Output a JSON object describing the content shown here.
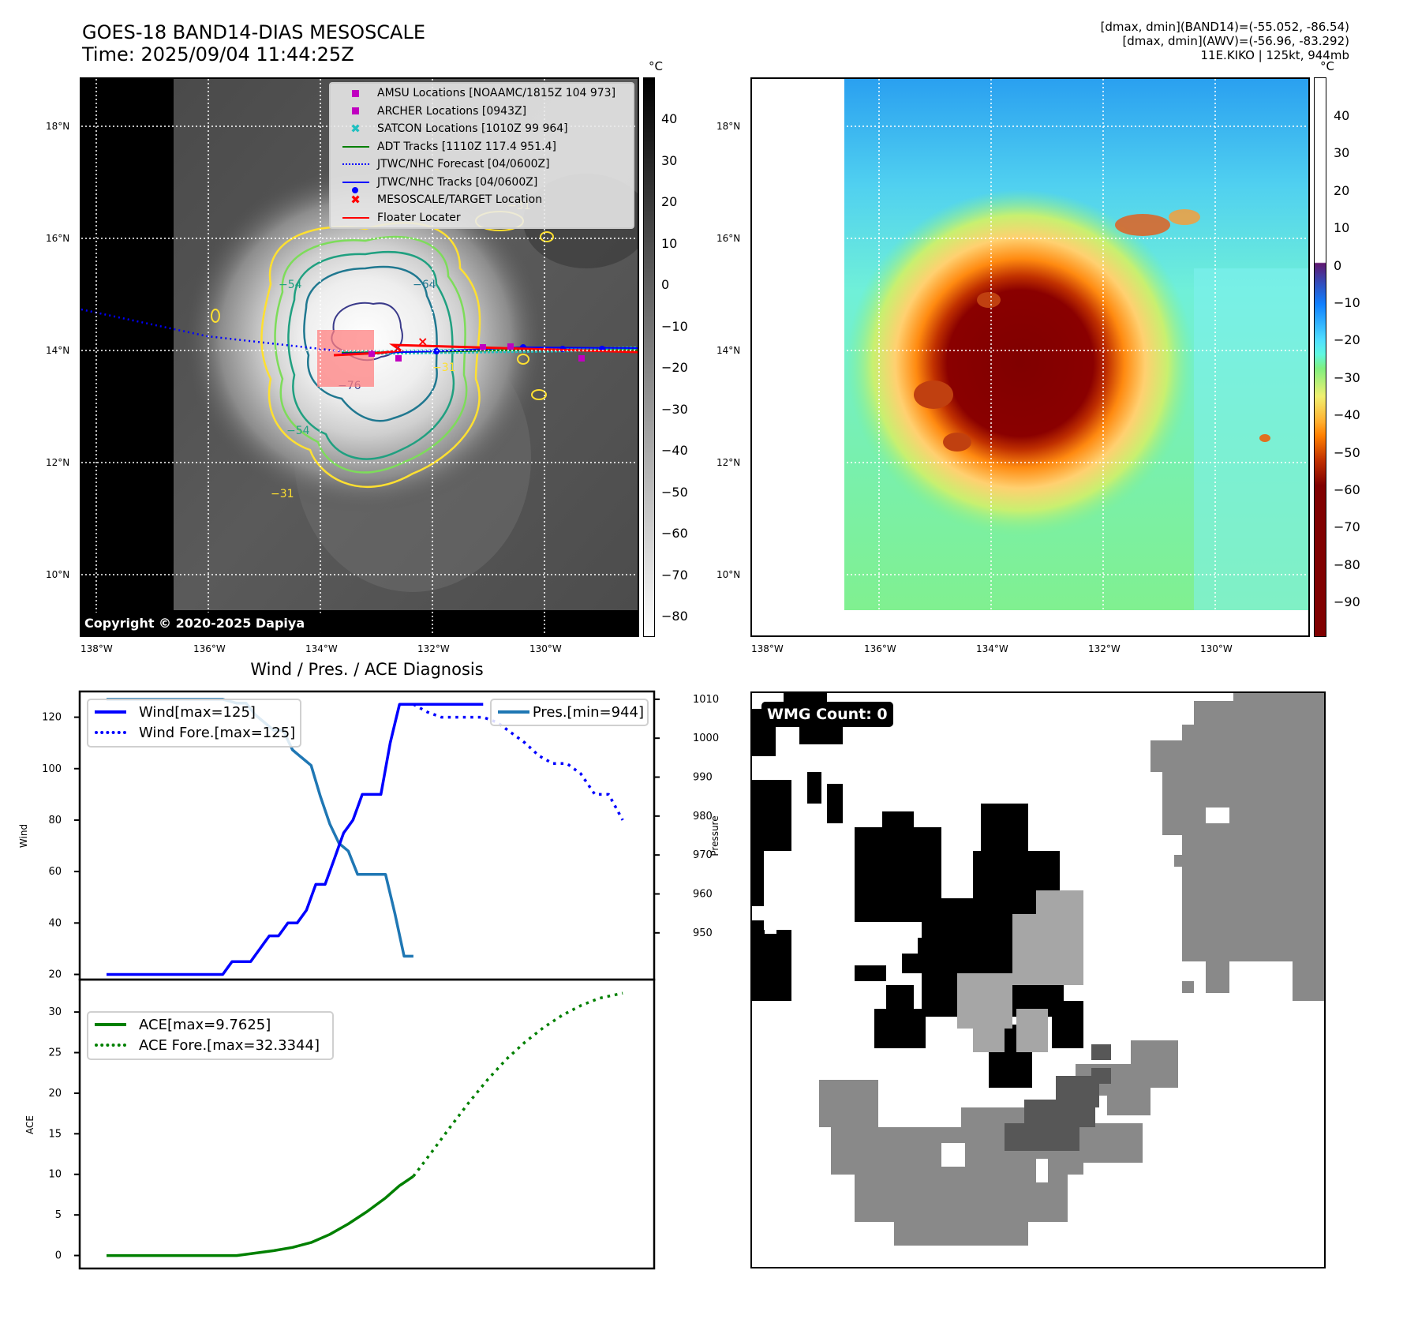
{
  "header": {
    "title_line1": "GOES-18 BAND14-DIAS MESOSCALE",
    "title_line2": "Time: 2025/09/04 11:44:25Z",
    "info_line1": "[dmax, dmin](BAND14)=(-55.052, -86.54)",
    "info_line2": "[dmax, dmin](AWV)=(-56.96, -83.292)",
    "info_line3": "11E.KIKO | 125kt, 944mb"
  },
  "map_left": {
    "lat_ticks": [
      "18°N",
      "16°N",
      "14°N",
      "12°N",
      "10°N"
    ],
    "lon_ticks": [
      "138°W",
      "136°W",
      "134°W",
      "132°W",
      "130°W"
    ],
    "copyright": "Copyright © 2020-2025 Dapiya",
    "colorbar_unit": "°C",
    "colorbar_ticks": [
      "40",
      "30",
      "20",
      "10",
      "0",
      "−10",
      "−20",
      "−30",
      "−40",
      "−50",
      "−60",
      "−70",
      "−80"
    ],
    "contour_labels": [
      "−31",
      "−54",
      "−64",
      "−76",
      "−31",
      "−54",
      "−31"
    ],
    "legend": [
      {
        "symbol": "square",
        "color": "#c000c0",
        "label": "AMSU Locations [NOAAMC/1815Z 104 973]"
      },
      {
        "symbol": "square",
        "color": "#c000c0",
        "label": "ARCHER Locations [0943Z]"
      },
      {
        "symbol": "x",
        "color": "#20c0c0",
        "label": "SATCON Locations [1010Z 99 964]"
      },
      {
        "symbol": "line",
        "color": "#008000",
        "label": "ADT Tracks [1110Z 117.4 951.4]"
      },
      {
        "symbol": "dotted",
        "color": "#0000ff",
        "label": "JTWC/NHC Forecast [04/0600Z]"
      },
      {
        "symbol": "line-dot",
        "color": "#0000ff",
        "label": "JTWC/NHC Tracks [04/0600Z]"
      },
      {
        "symbol": "x",
        "color": "#ff0000",
        "label": "MESOSCALE/TARGET Location"
      },
      {
        "symbol": "line",
        "color": "#ff0000",
        "label": "Floater Locater"
      }
    ]
  },
  "map_right": {
    "lat_ticks": [
      "18°N",
      "16°N",
      "14°N",
      "12°N",
      "10°N"
    ],
    "lon_ticks": [
      "138°W",
      "136°W",
      "134°W",
      "132°W",
      "130°W"
    ],
    "colorbar_unit": "°C",
    "colorbar_ticks": [
      "40",
      "30",
      "20",
      "10",
      "0",
      "−10",
      "−20",
      "−30",
      "−40",
      "−50",
      "−60",
      "−70",
      "−80",
      "−90"
    ]
  },
  "diagnosis": {
    "title": "Wind / Pres. / ACE Diagnosis"
  },
  "wmg": {
    "badge": "WMG Count: 0"
  },
  "chart_data": [
    {
      "type": "line",
      "title": "Wind / Pres. / ACE Diagnosis",
      "ylabel": "Wind",
      "ylabel_right": "Pressure",
      "ylim": [
        18,
        130
      ],
      "ylim_right": [
        938,
        1012
      ],
      "yticks": [
        "120",
        "100",
        "80",
        "60",
        "40",
        "20"
      ],
      "yticks_right": [
        "1010",
        "1000",
        "990",
        "980",
        "970",
        "960",
        "950"
      ],
      "x": [
        0,
        1,
        2,
        3,
        4,
        5,
        6,
        7,
        8,
        9,
        10,
        11,
        12,
        13,
        14,
        15,
        16,
        17,
        18,
        19,
        20,
        21,
        22,
        23,
        24,
        25,
        26,
        27,
        28,
        29,
        30,
        31,
        32,
        33,
        34,
        35,
        36,
        37,
        38,
        39,
        40,
        41,
        42,
        43,
        44,
        45,
        46,
        47,
        48,
        49,
        50,
        51,
        52,
        53,
        54,
        55,
        56,
        57,
        58,
        59,
        60,
        61,
        62,
        63,
        64,
        65,
        66,
        67,
        68,
        69,
        70,
        71,
        72,
        73,
        74,
        75,
        76,
        77,
        78,
        79,
        80,
        81,
        82,
        83,
        84,
        85,
        86,
        87,
        88,
        89,
        90,
        91,
        92,
        93,
        94,
        95,
        96,
        97,
        98,
        99,
        100,
        101,
        102,
        103,
        104,
        105,
        106,
        107,
        108,
        109,
        110,
        111,
        112
      ],
      "series": [
        {
          "name": "Wind[max=125]",
          "legend_label": "Wind[max=125]",
          "color": "#0000ff",
          "style": "solid",
          "axis": "left",
          "x": [
            0,
            5,
            10,
            15,
            20,
            25,
            26,
            27,
            28,
            29,
            30,
            31,
            32,
            33,
            34,
            35,
            36,
            37,
            38,
            39,
            40,
            41,
            42,
            43,
            44,
            45,
            46,
            47,
            48,
            49,
            50,
            51,
            52,
            53,
            54,
            55,
            56,
            57,
            58,
            59,
            60,
            61,
            62,
            63,
            64,
            65,
            66,
            67,
            68,
            69,
            70,
            71,
            72,
            73,
            74,
            75,
            76,
            77,
            78,
            79,
            80,
            81
          ],
          "values": [
            20,
            20,
            20,
            20,
            20,
            20,
            22.5,
            25,
            25,
            25,
            25,
            25,
            27.5,
            30,
            32.5,
            35,
            35,
            35,
            37.5,
            40,
            40,
            40,
            42.5,
            45,
            50,
            55,
            55,
            55,
            60,
            65,
            70,
            75,
            77.5,
            80,
            85,
            90,
            90,
            90,
            90,
            90,
            100,
            110,
            117.5,
            125,
            125,
            125,
            125,
            125,
            125,
            125,
            125,
            125,
            125,
            125,
            125,
            125,
            125,
            125,
            125,
            125,
            125,
            125
          ]
        },
        {
          "name": "Wind Fore.[max=125]",
          "legend_label": "Wind Fore.[max=125]",
          "color": "#0000ff",
          "style": "dotted",
          "axis": "left",
          "x": [
            66,
            69,
            72,
            75,
            78,
            81,
            84,
            87,
            90,
            93,
            96,
            99,
            102,
            105,
            108,
            111
          ],
          "values": [
            125,
            122,
            120,
            120,
            120,
            120,
            118,
            114,
            110,
            105,
            102,
            102,
            98,
            90,
            90,
            80
          ]
        },
        {
          "name": "Pres.[min=944]",
          "legend_label": "Pres.[min=944]",
          "color": "#1f77b4",
          "style": "solid",
          "axis": "right",
          "x": [
            0,
            10,
            20,
            25,
            28,
            30,
            32,
            34,
            36,
            38,
            40,
            42,
            44,
            46,
            48,
            50,
            52,
            54,
            56,
            58,
            60,
            62,
            64,
            66
          ],
          "values": [
            1010,
            1010,
            1010,
            1010,
            1009,
            1009,
            1006,
            1004,
            1002,
            1002,
            997,
            995,
            993,
            985,
            978,
            973,
            971,
            965,
            965,
            965,
            965,
            955,
            944,
            944
          ]
        }
      ]
    },
    {
      "type": "line",
      "ylabel": "ACE",
      "ylim": [
        -1.6,
        34
      ],
      "yticks": [
        "30",
        "25",
        "20",
        "15",
        "10",
        "5",
        "0"
      ],
      "series": [
        {
          "name": "ACE[max=9.7625]",
          "legend_label": "ACE[max=9.7625]",
          "color": "#008000",
          "style": "solid",
          "x": [
            0,
            10,
            20,
            28,
            32,
            36,
            40,
            44,
            48,
            52,
            56,
            60,
            63,
            66
          ],
          "values": [
            0,
            0,
            0,
            0,
            0.3,
            0.6,
            1.0,
            1.6,
            2.6,
            3.9,
            5.4,
            7.1,
            8.6,
            9.76
          ]
        },
        {
          "name": "ACE Fore.[max=32.3344]",
          "legend_label": "ACE Fore.[max=32.3344]",
          "color": "#008000",
          "style": "dotted",
          "x": [
            66,
            70,
            74,
            78,
            82,
            86,
            90,
            94,
            98,
            102,
            106,
            110,
            111
          ],
          "values": [
            9.76,
            12.8,
            15.9,
            18.9,
            21.7,
            24.2,
            26.3,
            28.1,
            29.6,
            30.8,
            31.7,
            32.2,
            32.33
          ]
        }
      ]
    }
  ]
}
